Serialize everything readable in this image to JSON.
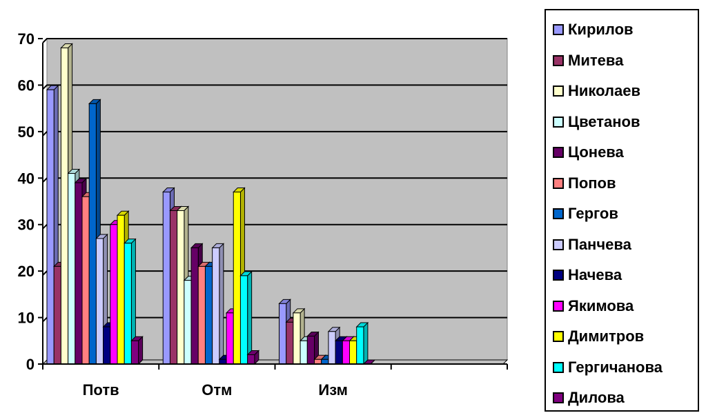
{
  "chart_data": {
    "type": "bar",
    "title": "",
    "xlabel": "",
    "ylabel": "",
    "ylim": [
      0,
      70
    ],
    "yticks": [
      "0",
      "10",
      "20",
      "30",
      "40",
      "50",
      "60",
      "70"
    ],
    "categories": [
      "Потв",
      "Отм",
      "Изм"
    ],
    "grid": true,
    "legend_position": "right",
    "series": [
      {
        "name": "Кирилов",
        "color": "#9999ff",
        "values": [
          59,
          37,
          13
        ]
      },
      {
        "name": "Митева",
        "color": "#993366",
        "values": [
          21,
          33,
          9
        ]
      },
      {
        "name": "Николаев",
        "color": "#ffffcc",
        "values": [
          68,
          33,
          11
        ]
      },
      {
        "name": "Цветанов",
        "color": "#ccffff",
        "values": [
          41,
          18,
          5
        ]
      },
      {
        "name": "Цонева",
        "color": "#660066",
        "values": [
          39,
          25,
          6
        ]
      },
      {
        "name": "Попов",
        "color": "#ff8080",
        "values": [
          36,
          21,
          1
        ]
      },
      {
        "name": "Гергов",
        "color": "#0066cc",
        "values": [
          56,
          21,
          1
        ]
      },
      {
        "name": "Панчева",
        "color": "#ccccff",
        "values": [
          27,
          25,
          7
        ]
      },
      {
        "name": "Начева",
        "color": "#000080",
        "values": [
          8,
          1,
          5
        ]
      },
      {
        "name": "Якимова",
        "color": "#ff00ff",
        "values": [
          30,
          11,
          5
        ]
      },
      {
        "name": "Димитров",
        "color": "#ffff00",
        "values": [
          32,
          37,
          5
        ]
      },
      {
        "name": "Гергичанова",
        "color": "#00ffff",
        "values": [
          26,
          19,
          8
        ]
      },
      {
        "name": "Дилова",
        "color": "#800080",
        "values": [
          5,
          2,
          0
        ]
      }
    ]
  }
}
